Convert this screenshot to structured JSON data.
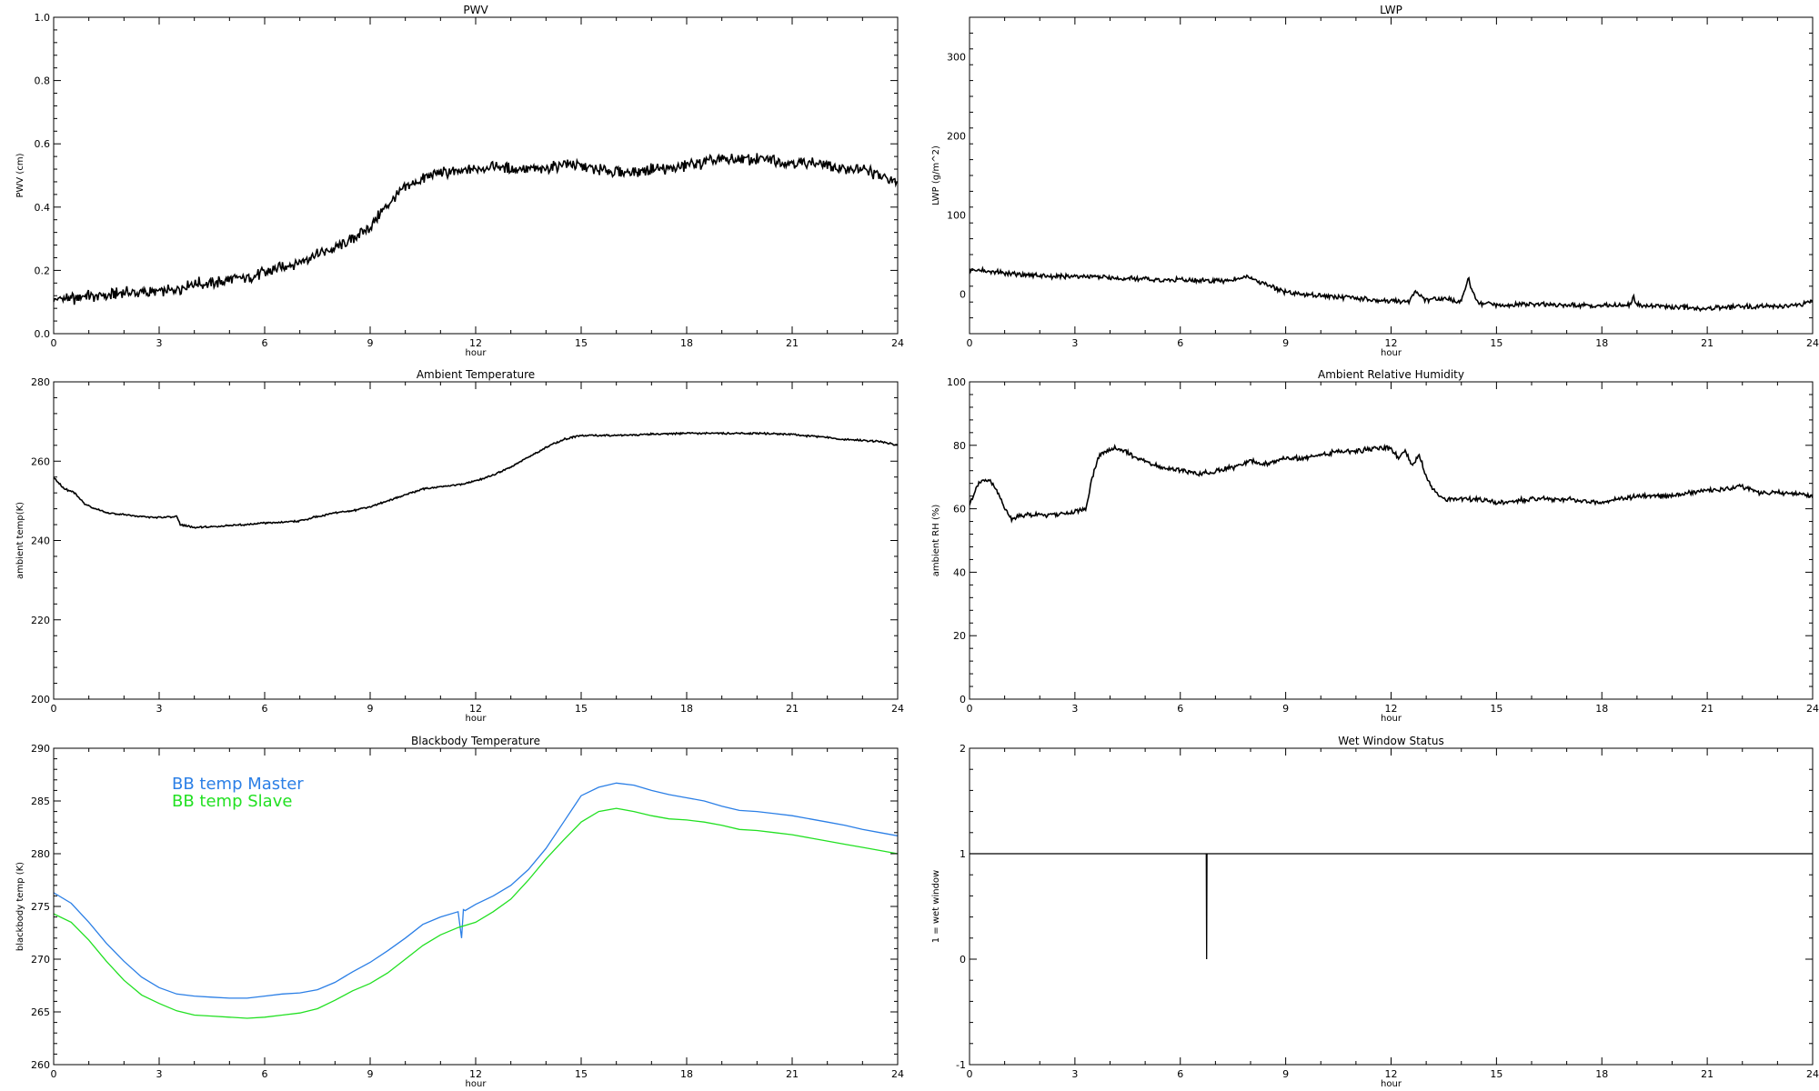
{
  "chart_data": [
    {
      "id": "pwv",
      "type": "line",
      "title": "PWV",
      "xlabel": "hour",
      "ylabel": "PWV (cm)",
      "xlim": [
        0,
        24
      ],
      "ylim": [
        0,
        1
      ],
      "xticks": [
        0,
        3,
        6,
        9,
        12,
        15,
        18,
        21,
        24
      ],
      "yticks": [
        0.0,
        0.2,
        0.4,
        0.6,
        0.8,
        1.0
      ],
      "ytick_labels": [
        "0.0",
        "0.2",
        "0.4",
        "0.6",
        "0.8",
        "1.0"
      ],
      "series": [
        {
          "color": "#000000",
          "noise": 0.012,
          "x": [
            0,
            0.5,
            1,
            1.5,
            2,
            2.5,
            3,
            3.5,
            4,
            4.5,
            5,
            5.5,
            6,
            6.5,
            7,
            7.5,
            8,
            8.5,
            9,
            9.5,
            10,
            10.5,
            11,
            11.5,
            12,
            12.5,
            13,
            13.5,
            14,
            14.5,
            15,
            15.5,
            16,
            16.5,
            17,
            17.5,
            18,
            18.5,
            19,
            19.5,
            20,
            20.5,
            21,
            21.5,
            22,
            22.5,
            23,
            23.5,
            24
          ],
          "y": [
            0.11,
            0.11,
            0.12,
            0.12,
            0.13,
            0.13,
            0.13,
            0.14,
            0.16,
            0.16,
            0.17,
            0.18,
            0.19,
            0.21,
            0.23,
            0.25,
            0.27,
            0.3,
            0.34,
            0.41,
            0.46,
            0.49,
            0.51,
            0.51,
            0.52,
            0.53,
            0.52,
            0.52,
            0.52,
            0.54,
            0.53,
            0.52,
            0.51,
            0.51,
            0.52,
            0.52,
            0.53,
            0.54,
            0.55,
            0.55,
            0.55,
            0.55,
            0.54,
            0.54,
            0.53,
            0.52,
            0.52,
            0.5,
            0.48
          ]
        }
      ]
    },
    {
      "id": "lwp",
      "type": "line",
      "title": "LWP",
      "xlabel": "hour",
      "ylabel": "LWP (g/m^2)",
      "xlim": [
        0,
        24
      ],
      "ylim": [
        -50,
        350
      ],
      "xticks": [
        0,
        3,
        6,
        9,
        12,
        15,
        18,
        21,
        24
      ],
      "yticks": [
        0,
        100,
        200,
        300
      ],
      "ytick_labels": [
        "0",
        "100",
        "200",
        "300"
      ],
      "series": [
        {
          "color": "#000000",
          "noise": 2,
          "x": [
            0,
            0.5,
            1,
            1.5,
            2,
            2.5,
            3,
            3.5,
            4,
            4.5,
            5,
            5.5,
            6,
            6.5,
            7,
            7.5,
            7.9,
            8.3,
            8.7,
            9,
            9.5,
            10,
            10.5,
            11,
            11.5,
            12,
            12.5,
            12.7,
            13,
            13.5,
            14,
            14.2,
            14.3,
            14.5,
            15,
            16,
            17,
            18,
            18.8,
            18.9,
            19,
            19.5,
            20,
            20.5,
            21,
            21.5,
            22,
            22.5,
            23,
            23.5,
            24
          ],
          "y": [
            31,
            29,
            27,
            25,
            23,
            22,
            22,
            22,
            21,
            20,
            19,
            18,
            18,
            17,
            17,
            18,
            22,
            14,
            8,
            3,
            0,
            -2,
            -4,
            -5,
            -8,
            -9,
            -10,
            3,
            -8,
            -6,
            -9,
            20,
            5,
            -12,
            -13,
            -13,
            -14,
            -15,
            -14,
            -3,
            -14,
            -15,
            -16,
            -17,
            -18,
            -17,
            -16,
            -15,
            -15,
            -14,
            -9
          ]
        }
      ]
    },
    {
      "id": "ambient-temp",
      "type": "line",
      "title": "Ambient Temperature",
      "xlabel": "hour",
      "ylabel": "ambient temp(K)",
      "xlim": [
        0,
        24
      ],
      "ylim": [
        200,
        280
      ],
      "xticks": [
        0,
        3,
        6,
        9,
        12,
        15,
        18,
        21,
        24
      ],
      "yticks": [
        200,
        220,
        240,
        260,
        280
      ],
      "ytick_labels": [
        "200",
        "220",
        "240",
        "260",
        "280"
      ],
      "series": [
        {
          "color": "#000000",
          "noise": 0.15,
          "x": [
            0,
            0.3,
            0.6,
            0.9,
            1.2,
            1.5,
            2,
            2.5,
            3,
            3.5,
            3.6,
            4,
            4.5,
            5,
            5.5,
            6,
            6.5,
            7,
            7.5,
            8,
            8.5,
            9,
            9.5,
            10,
            10.5,
            11,
            11.5,
            12,
            12.5,
            13,
            13.5,
            14,
            14.5,
            15,
            16,
            17,
            18,
            19,
            20,
            21,
            21.5,
            22,
            22.5,
            23,
            23.5,
            24
          ],
          "y": [
            256,
            253,
            252,
            249,
            248,
            247,
            246.5,
            246,
            245.8,
            246,
            244,
            243.3,
            243.5,
            243.8,
            244,
            244.4,
            244.6,
            245,
            246,
            247,
            247.5,
            248.5,
            250,
            251.5,
            253,
            253.5,
            254,
            255,
            256.5,
            258.5,
            261,
            263.5,
            265.5,
            266.5,
            266.5,
            266.8,
            267,
            267,
            267,
            266.8,
            266.3,
            266,
            265.5,
            265.2,
            265,
            264
          ]
        }
      ]
    },
    {
      "id": "ambient-rh",
      "type": "line",
      "title": "Ambient Relative Humidity",
      "xlabel": "hour",
      "ylabel": "ambient RH (%)",
      "xlim": [
        0,
        24
      ],
      "ylim": [
        0,
        100
      ],
      "xticks": [
        0,
        3,
        6,
        9,
        12,
        15,
        18,
        21,
        24
      ],
      "yticks": [
        0,
        20,
        40,
        60,
        80,
        100
      ],
      "ytick_labels": [
        "0",
        "20",
        "40",
        "60",
        "80",
        "100"
      ],
      "series": [
        {
          "color": "#000000",
          "noise": 0.5,
          "x": [
            0,
            0.2,
            0.4,
            0.6,
            0.8,
            1,
            1.2,
            1.5,
            2,
            2.5,
            3,
            3.3,
            3.5,
            3.7,
            4,
            4.3,
            4.6,
            5,
            5.5,
            6,
            6.5,
            7,
            7.5,
            8,
            8.5,
            9,
            9.5,
            10,
            10.5,
            11,
            11.5,
            12,
            12.2,
            12.4,
            12.6,
            12.8,
            13,
            13.2,
            13.5,
            14,
            14.5,
            15,
            16,
            17,
            18,
            19,
            20,
            21,
            21.5,
            22,
            22.5,
            23,
            23.5,
            24
          ],
          "y": [
            61,
            67,
            69,
            69,
            65,
            60,
            57,
            58,
            58,
            58,
            59,
            60,
            70,
            77,
            79,
            79,
            77,
            75,
            73,
            72,
            71,
            72,
            73,
            75,
            74,
            76,
            76,
            77,
            78,
            78,
            79,
            79,
            76,
            78,
            74,
            77,
            70,
            66,
            63,
            63,
            63,
            62,
            63,
            63,
            62,
            64,
            64,
            66,
            66,
            67,
            65,
            65,
            65,
            64
          ]
        }
      ]
    },
    {
      "id": "blackbody-temp",
      "type": "line",
      "title": "Blackbody Temperature",
      "xlabel": "hour",
      "ylabel": "blackbody temp (K)",
      "xlim": [
        0,
        24
      ],
      "ylim": [
        260,
        290
      ],
      "xticks": [
        0,
        3,
        6,
        9,
        12,
        15,
        18,
        21,
        24
      ],
      "yticks": [
        260,
        265,
        270,
        275,
        280,
        285,
        290
      ],
      "ytick_labels": [
        "260",
        "265",
        "270",
        "275",
        "280",
        "285",
        "290"
      ],
      "legend": "top-left",
      "series": [
        {
          "name": "BB temp Master",
          "color": "#2b7fe6",
          "noise": 0,
          "x": [
            0,
            0.5,
            1,
            1.5,
            2,
            2.5,
            3,
            3.5,
            4,
            4.5,
            5,
            5.5,
            6,
            6.5,
            7,
            7.5,
            8,
            8.5,
            9,
            9.5,
            10,
            10.5,
            11,
            11.5,
            11.6,
            11.65,
            11.7,
            12,
            12.5,
            13,
            13.5,
            14,
            14.5,
            15,
            15.5,
            16,
            16.5,
            17,
            17.5,
            18,
            18.5,
            19,
            19.5,
            20,
            20.5,
            21,
            21.5,
            22,
            22.5,
            23,
            23.5,
            24
          ],
          "y": [
            276.3,
            275.3,
            273.5,
            271.5,
            269.8,
            268.3,
            267.3,
            266.7,
            266.5,
            266.4,
            266.3,
            266.3,
            266.5,
            266.7,
            266.8,
            267.1,
            267.8,
            268.8,
            269.7,
            270.8,
            272,
            273.3,
            274,
            274.5,
            272,
            274.7,
            274.6,
            275.2,
            276,
            277,
            278.5,
            280.5,
            283,
            285.5,
            286.3,
            286.7,
            286.5,
            286,
            285.6,
            285.3,
            285,
            284.5,
            284.1,
            284,
            283.8,
            283.6,
            283.3,
            283,
            282.7,
            282.3,
            282,
            281.7
          ]
        },
        {
          "name": "BB temp Slave",
          "color": "#22e022",
          "noise": 0,
          "x": [
            0,
            0.5,
            1,
            1.5,
            2,
            2.5,
            3,
            3.5,
            4,
            4.5,
            5,
            5.5,
            6,
            6.5,
            7,
            7.5,
            8,
            8.5,
            9,
            9.5,
            10,
            10.5,
            11,
            11.5,
            12,
            12.5,
            13,
            13.5,
            14,
            14.5,
            15,
            15.5,
            16,
            16.5,
            17,
            17.5,
            18,
            18.5,
            19,
            19.5,
            20,
            20.5,
            21,
            21.5,
            22,
            22.5,
            23,
            23.5,
            24
          ],
          "y": [
            274.3,
            273.5,
            271.8,
            269.8,
            268,
            266.6,
            265.8,
            265.1,
            264.7,
            264.6,
            264.5,
            264.4,
            264.5,
            264.7,
            264.9,
            265.3,
            266.1,
            267,
            267.7,
            268.7,
            270,
            271.3,
            272.3,
            273,
            273.5,
            274.5,
            275.7,
            277.5,
            279.5,
            281.3,
            283,
            284,
            284.3,
            284,
            283.6,
            283.3,
            283.2,
            283,
            282.7,
            282.3,
            282.2,
            282,
            281.8,
            281.5,
            281.2,
            280.9,
            280.6,
            280.3,
            280
          ]
        }
      ]
    },
    {
      "id": "wet-window",
      "type": "line",
      "title": "Wet Window Status",
      "xlabel": "hour",
      "ylabel": "1 = wet window",
      "xlim": [
        0,
        24
      ],
      "ylim": [
        -1,
        2
      ],
      "xticks": [
        0,
        3,
        6,
        9,
        12,
        15,
        18,
        21,
        24
      ],
      "yticks": [
        -1,
        0,
        1,
        2
      ],
      "ytick_labels": [
        "-1",
        "0",
        "1",
        "2"
      ],
      "series": [
        {
          "color": "#000000",
          "noise": 0,
          "x": [
            0,
            6.74,
            6.75,
            6.76,
            24
          ],
          "y": [
            1,
            1,
            0,
            1,
            1
          ]
        }
      ]
    }
  ]
}
